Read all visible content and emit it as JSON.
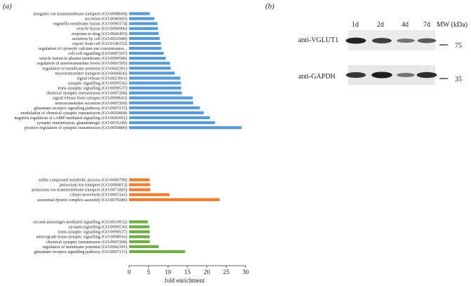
{
  "panel_a_label": "(a)",
  "panel_b_label": "(b)",
  "chart_data": {
    "type": "bar",
    "orientation": "horizontal",
    "xlabel": "fold enrichment",
    "xlim": [
      0,
      30
    ],
    "xticks": [
      0,
      5,
      10,
      15,
      20,
      25,
      30
    ],
    "grid": false,
    "series": [
      {
        "color": "#5b9bd5",
        "categories": [
          "inorganic ion transmembrane transport (GO:0098660)",
          "secretion (GO:0046903)",
          "organella membrane fusion (GO:0090174)",
          "vesicle fusion (GO:0006906)",
          "response to drug (GO:0042493)",
          "secretion by cell (GO:0032940)",
          "export from cell (GO:0140352)",
          "regulation of cytosolic calcium ion concentration...",
          "cell-cell signalling (GO:0007267)",
          "vesicle fusion to plasma membrane (GO:0099500)",
          "regulation of neurotransmitter levels (GO:0001505)",
          "regulation of membrane potential (GO:0042391)",
          "neurotransmitter transport (GO:0006836)",
          "signal release (GO:0023061)",
          "synaptic signalling (GO:0099536)",
          "trans-synaptic signalling (GO:0099537)",
          "chemical synaptic transmission (GO:0007268)",
          "signal release from synapse (GO:0099643)",
          "neurotransmitter secretion (GO:0007269)",
          "glutamate receptor signalling pathway (GO:0007215)",
          "modulation of chemical synaptic transmission (GO:0050804)",
          "negative regulation of cAMP-mediated signalling (GO:0043951)",
          "synaptic transmission, glutamatergic (GO:0035249)",
          "positive regulation of synaptic transmission (GO:0050806)"
        ],
        "values": [
          5.3,
          6.5,
          7.3,
          7.4,
          7.6,
          7.9,
          8.2,
          8.3,
          8.9,
          9.4,
          10.5,
          10.7,
          11.7,
          13.2,
          13.3,
          13.4,
          13.6,
          16.4,
          16.5,
          18.2,
          19.2,
          20.8,
          22.1,
          29.0
        ]
      },
      {
        "color": "#ed7d31",
        "categories": [
          "sulfur compound metabolic process (GO:0006790)",
          "potassium ion transport (GO:0006813)",
          "potassium ion transmembrane transport (GO:0071805)",
          "cilium movement (GO:0003341)",
          "axonemal dynein complex assembly (GO:0070286)"
        ],
        "values": [
          5.3,
          5.4,
          5.4,
          10.4,
          23.3
        ]
      },
      {
        "color": "#70ad47",
        "categories": [
          "second-messenger-mediated signalling (GO:0019932)",
          "synapticsignalling (GO:0099536)",
          "trans-synaptic signalling (GO:0099537)",
          "anterograde trans-synaptic signalling (GO:0098916)",
          "chemical synaptic transmission (GO:0007268)",
          "regulation of membrane potential (GO:0042391)",
          "glutamate receptor signalling pathway (GO:0007215)"
        ],
        "values": [
          4.8,
          5.2,
          5.3,
          5.3,
          5.3,
          7.6,
          14.4
        ]
      }
    ]
  },
  "western_blot": {
    "lanes": [
      "1d",
      "2d",
      "4d",
      "7d"
    ],
    "mw_header": "MW (kDa)",
    "rows": [
      {
        "label": "anti-VGLUT1",
        "intensities": [
          0.9,
          0.75,
          0.45,
          0.6
        ]
      },
      {
        "label": "anti-GAPDH",
        "intensities": [
          0.8,
          0.95,
          0.45,
          0.85
        ]
      }
    ],
    "markers": [
      "75",
      "35"
    ]
  }
}
